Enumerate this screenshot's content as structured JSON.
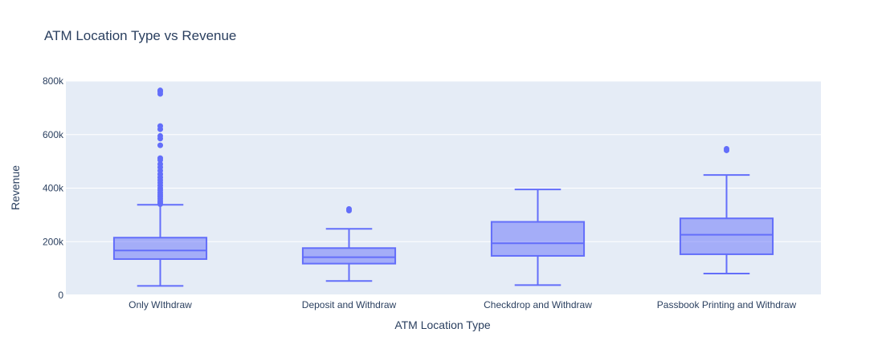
{
  "chart_data": {
    "type": "box",
    "title": "ATM Location Type vs Revenue",
    "xlabel": "ATM Location Type",
    "ylabel": "Revenue",
    "ylim": [
      0,
      800000
    ],
    "yticks": [
      0,
      200000,
      400000,
      600000,
      800000
    ],
    "ytick_labels": [
      "0",
      "200k",
      "400k",
      "600k",
      "800k"
    ],
    "grid": true,
    "legend": "none",
    "colors": {
      "box": "#636efa",
      "plot_bg": "#e5ecf6",
      "grid": "#ffffff",
      "text": "#2a3f5f"
    },
    "categories": [
      "Only WIthdraw",
      "Deposit and Withdraw",
      "Checkdrop and Withdraw",
      "Passbook Printing and Withdraw"
    ],
    "boxes": [
      {
        "category": "Only WIthdraw",
        "min": 35000,
        "q1": 135000,
        "median": 167000,
        "q3": 215000,
        "max": 338000,
        "outliers": [
          340000,
          345000,
          352000,
          360000,
          368000,
          375000,
          383000,
          392000,
          400000,
          410000,
          420000,
          430000,
          440000,
          452000,
          465000,
          478000,
          490000,
          505000,
          512000,
          560000,
          585000,
          595000,
          620000,
          632000,
          752000,
          760000,
          765000
        ]
      },
      {
        "category": "Deposit and Withdraw",
        "min": 53000,
        "q1": 118000,
        "median": 142000,
        "q3": 176000,
        "max": 248000,
        "outliers": [
          316000,
          322000
        ]
      },
      {
        "category": "Checkdrop and Withdraw",
        "min": 38000,
        "q1": 147000,
        "median": 194000,
        "q3": 274000,
        "max": 395000,
        "outliers": []
      },
      {
        "category": "Passbook Printing and Withdraw",
        "min": 81000,
        "q1": 153000,
        "median": 226000,
        "q3": 287000,
        "max": 449000,
        "outliers": [
          541000,
          547000
        ]
      }
    ]
  }
}
